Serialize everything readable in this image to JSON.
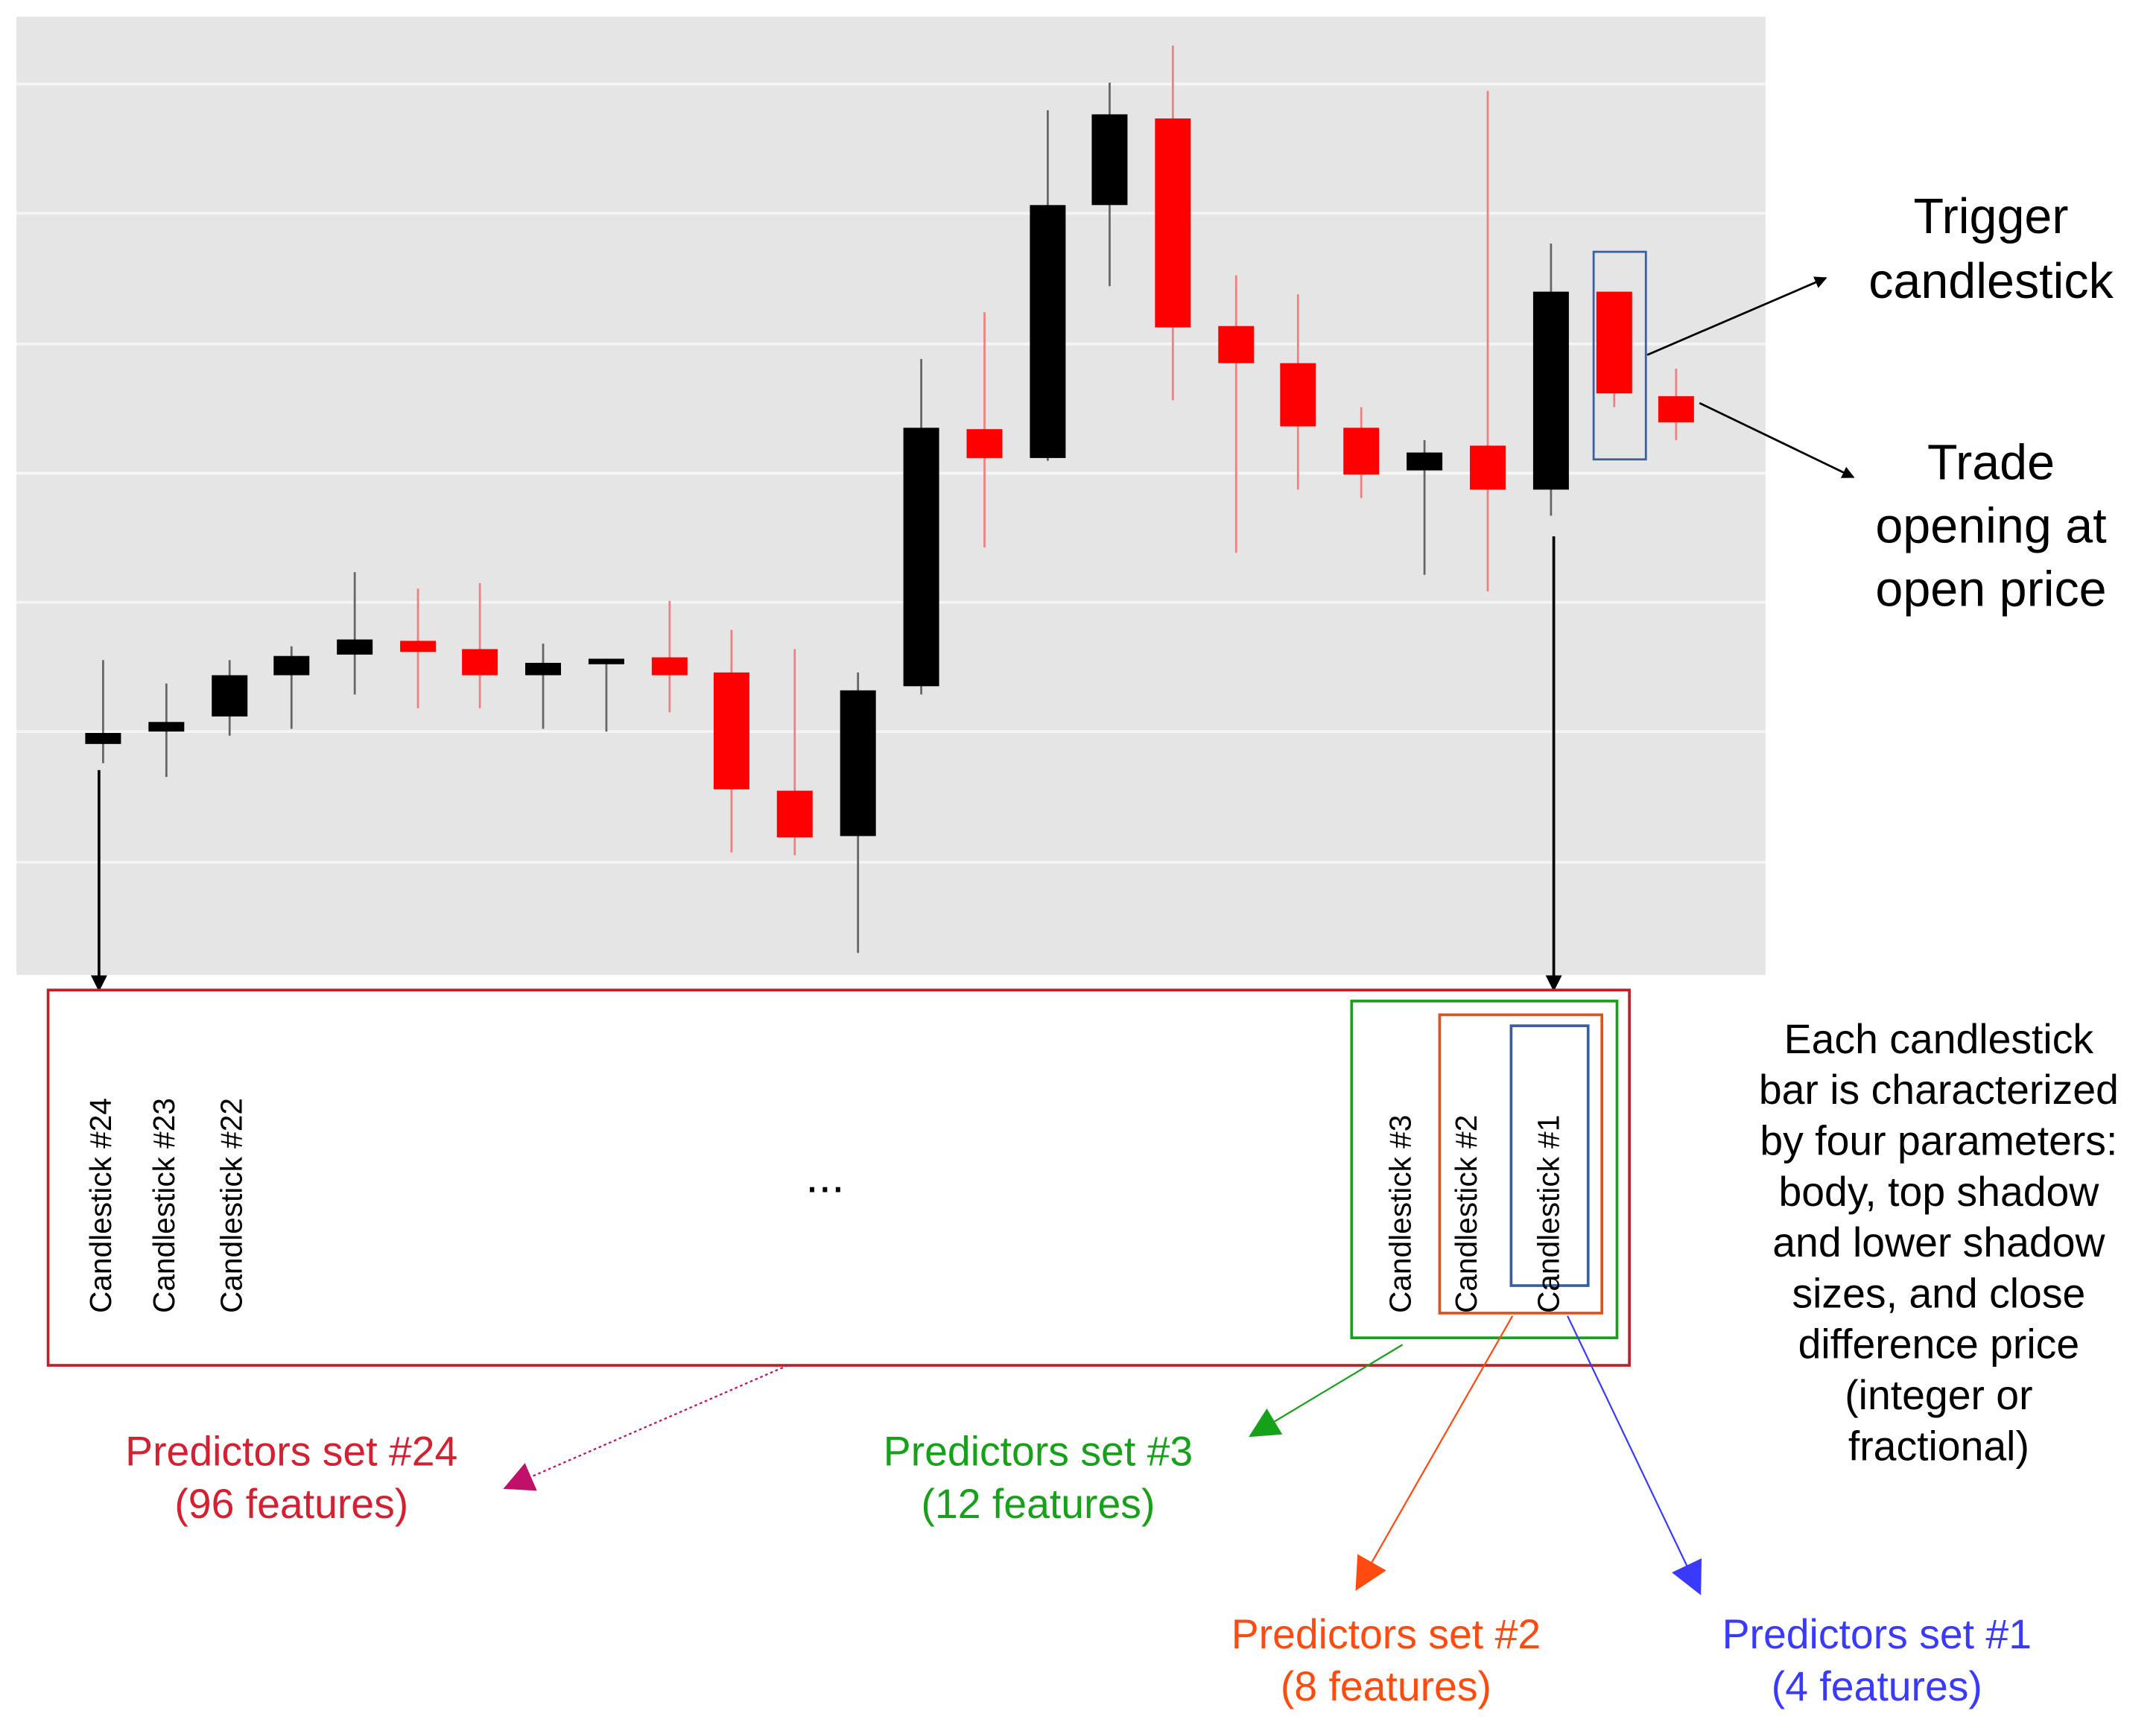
{
  "chart": {
    "trigger_label": [
      "Trigger",
      "candlestick"
    ],
    "trade_label": [
      "Trade",
      "opening at",
      "open price"
    ]
  },
  "window": {
    "candlesticks_left": [
      "Candlestick #24",
      "Candlestick #23",
      "Candlestick #22"
    ],
    "ellipsis": "...",
    "candlesticks_right": [
      "Candlestick #3",
      "Candlestick #2",
      "Candlestick #1"
    ]
  },
  "description": [
    "Each candlestick",
    "bar is characterized",
    "by four parameters:",
    "body, top shadow",
    "and lower shadow",
    "sizes, and close",
    "difference price",
    "(integer or",
    "fractional)"
  ],
  "predictors": [
    {
      "title": "Predictors set #24",
      "features": "(96 features)"
    },
    {
      "title": "Predictors set #3",
      "features": "(12 features)"
    },
    {
      "title": "Predictors set #2",
      "features": "(8 features)"
    },
    {
      "title": "Predictors set #1",
      "features": "(4 features)"
    }
  ]
}
